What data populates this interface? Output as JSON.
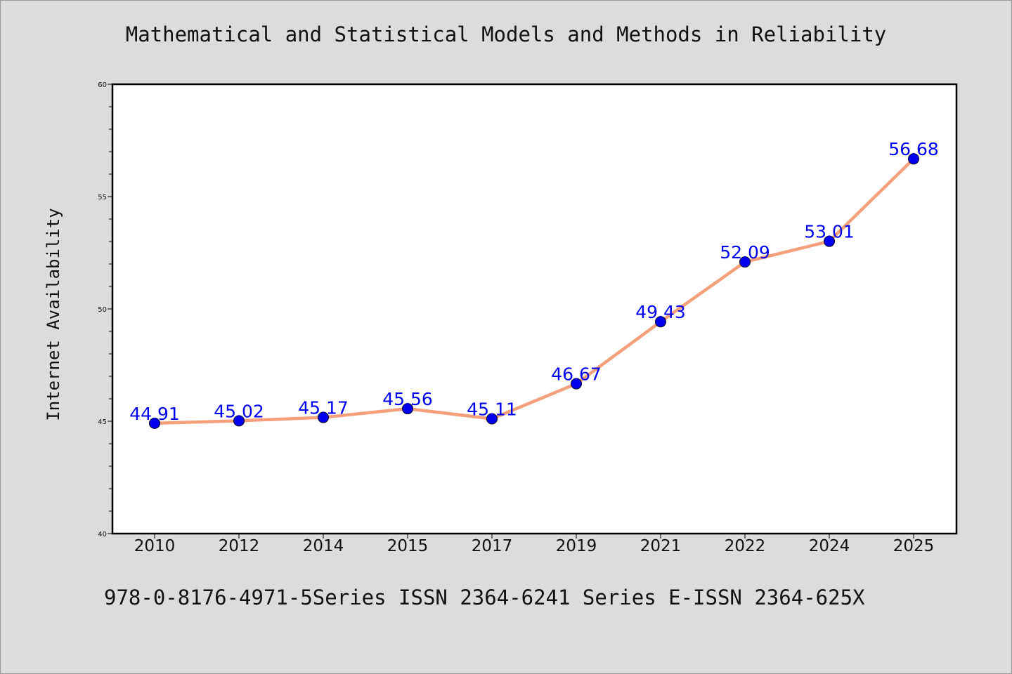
{
  "chart_data": {
    "type": "line",
    "title": "Mathematical and Statistical Models and Methods in Reliability",
    "ylabel": "Internet Availability",
    "xlabel": "",
    "categories": [
      "2010",
      "2012",
      "2014",
      "2015",
      "2017",
      "2019",
      "2021",
      "2022",
      "2024",
      "2025"
    ],
    "values": [
      44.91,
      45.02,
      45.17,
      45.56,
      45.11,
      46.67,
      49.43,
      52.09,
      53.01,
      56.68
    ],
    "data_labels": [
      "44.91",
      "45.02",
      "45.17",
      "45.56",
      "45.11",
      "46.67",
      "49.43",
      "52.09",
      "53.01",
      "56.68"
    ],
    "ylim": [
      40,
      60
    ],
    "y_ticks": [
      40,
      45,
      50,
      55,
      60
    ],
    "y_tick_labels": [
      "40",
      "45",
      "50",
      "55",
      "60"
    ],
    "grid": false,
    "colors": {
      "line": "#f4a07a",
      "marker": "#0000ee",
      "label": "#0000ee"
    }
  },
  "footer": {
    "text": "978-0-8176-4971-5Series ISSN 2364-6241 Series E-ISSN 2364-625X"
  }
}
